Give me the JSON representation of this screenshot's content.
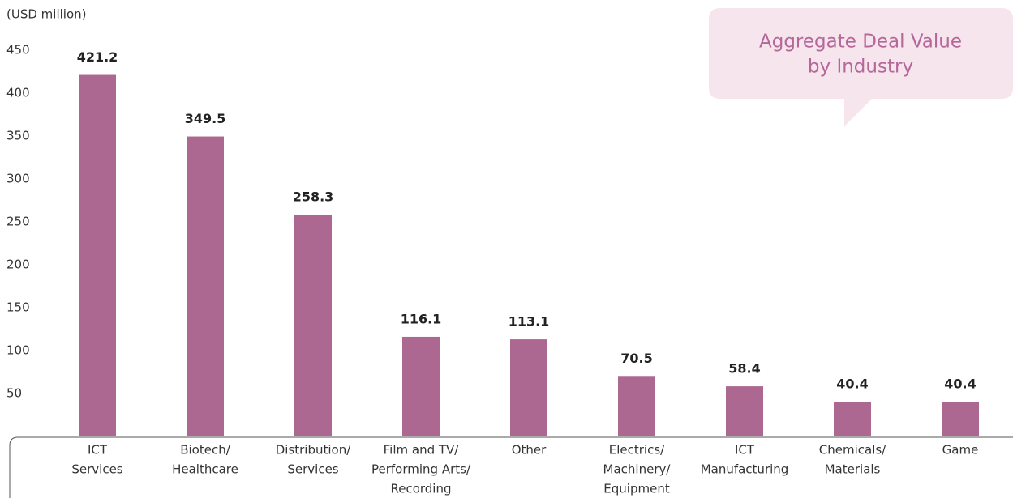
{
  "chart_data": {
    "type": "bar",
    "title": [
      "Aggregate Deal Value",
      "by Industry"
    ],
    "y_label": "(USD million)",
    "categories": [
      [
        "ICT",
        "Services"
      ],
      [
        "Biotech/",
        "Healthcare"
      ],
      [
        "Distribution/",
        "Services"
      ],
      [
        "Film and TV/",
        "Performing Arts/",
        "Recording"
      ],
      [
        "Other"
      ],
      [
        "Electrics/",
        "Machinery/",
        "Equipment"
      ],
      [
        "ICT",
        "Manufacturing"
      ],
      [
        "Chemicals/",
        "Materials"
      ],
      [
        "Game"
      ]
    ],
    "values": [
      421.2,
      349.5,
      258.3,
      116.1,
      113.1,
      70.5,
      58.4,
      40.4,
      40.4
    ],
    "color": "#ac6891",
    "ylim": [
      0,
      450
    ],
    "yticks": [
      50,
      100,
      150,
      200,
      250,
      300,
      350,
      400,
      450
    ],
    "grid": false
  }
}
